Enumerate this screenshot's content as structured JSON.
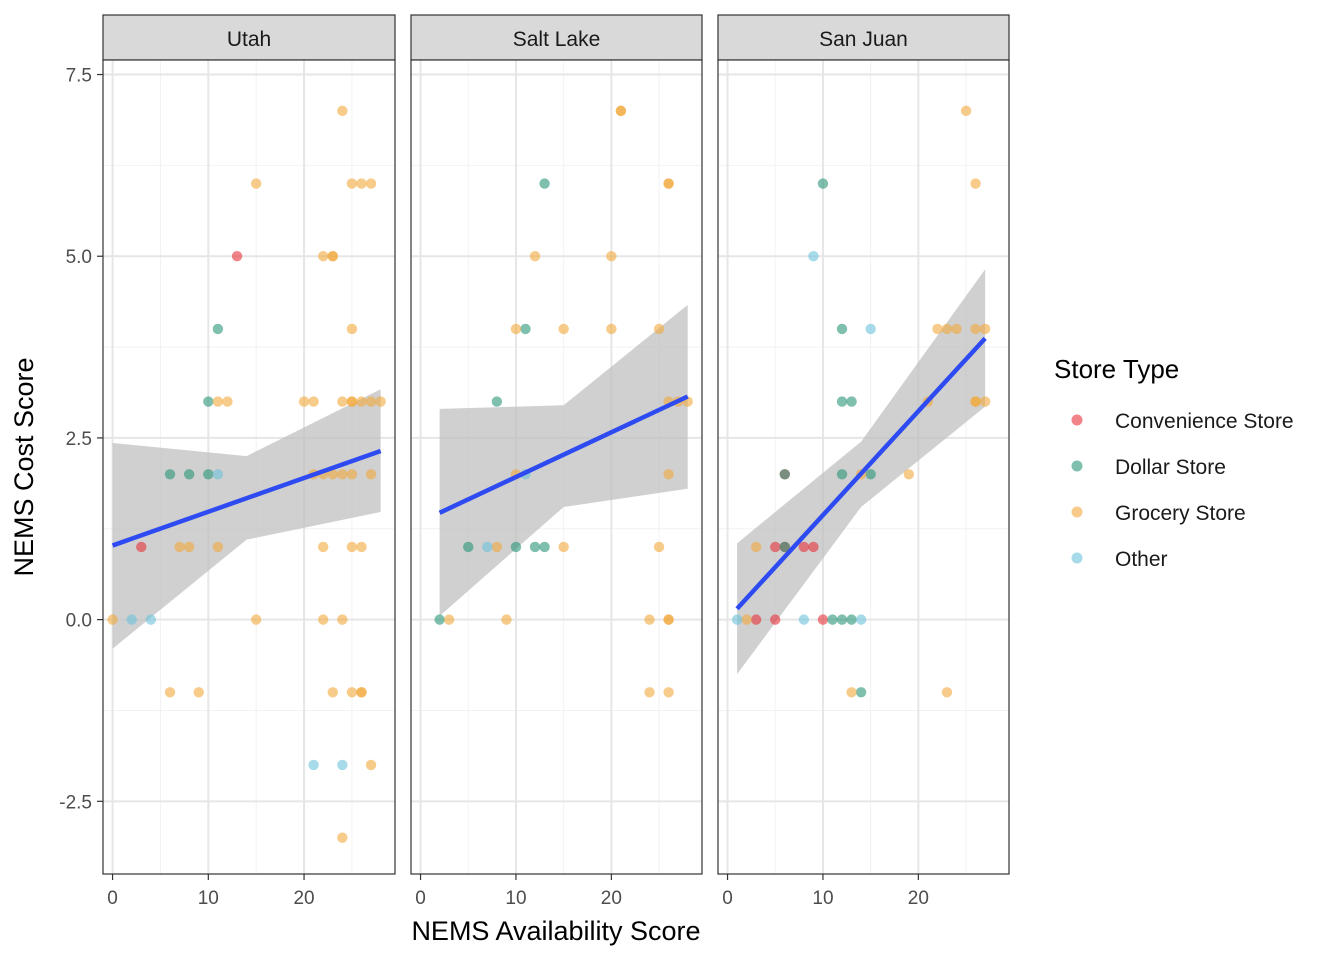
{
  "chart_data": {
    "type": "scatter",
    "facet_by": "county",
    "panels": [
      "Utah",
      "Salt Lake",
      "San Juan"
    ],
    "xlabel": "NEMS Availability Score",
    "ylabel": "NEMS Cost Score",
    "xlim": [
      -1,
      29.5
    ],
    "ylim": [
      -3.5,
      7.7
    ],
    "x_ticks": [
      0,
      10,
      20
    ],
    "y_ticks": [
      -2.5,
      0.0,
      2.5,
      5.0,
      7.5
    ],
    "y_tick_labels": [
      "-2.5",
      "0.0",
      "2.5",
      "5.0",
      "7.5"
    ],
    "grid": true,
    "legend": {
      "title": "Store Type",
      "position": "right",
      "entries": [
        "Convenience Store",
        "Dollar Store",
        "Grocery Store",
        "Other"
      ]
    },
    "colors": {
      "Convenience Store": "#E8323B",
      "Dollar Store": "#2A9478",
      "Grocery Store": "#F2A93B",
      "Other": "#6DC3DC",
      "fit_line": "#2E4BF2",
      "ribbon": "#BEBEBE"
    },
    "series": [
      {
        "name": "Convenience Store",
        "points": [
          {
            "panel": "Utah",
            "x": 3,
            "y": 1
          },
          {
            "panel": "Utah",
            "x": 13,
            "y": 5
          },
          {
            "panel": "San Juan",
            "x": 3,
            "y": 0
          },
          {
            "panel": "San Juan",
            "x": 5,
            "y": 0
          },
          {
            "panel": "San Juan",
            "x": 10,
            "y": 0
          },
          {
            "panel": "San Juan",
            "x": 5,
            "y": 1
          },
          {
            "panel": "San Juan",
            "x": 6,
            "y": 1
          },
          {
            "panel": "San Juan",
            "x": 8,
            "y": 1
          },
          {
            "panel": "San Juan",
            "x": 9,
            "y": 1
          },
          {
            "panel": "San Juan",
            "x": 6,
            "y": 2
          }
        ]
      },
      {
        "name": "Dollar Store",
        "points": [
          {
            "panel": "Utah",
            "x": 6,
            "y": 2
          },
          {
            "panel": "Utah",
            "x": 8,
            "y": 2
          },
          {
            "panel": "Utah",
            "x": 10,
            "y": 2
          },
          {
            "panel": "Utah",
            "x": 10,
            "y": 3
          },
          {
            "panel": "Utah",
            "x": 11,
            "y": 4
          },
          {
            "panel": "Salt Lake",
            "x": 2,
            "y": 0
          },
          {
            "panel": "Salt Lake",
            "x": 5,
            "y": 1
          },
          {
            "panel": "Salt Lake",
            "x": 10,
            "y": 1
          },
          {
            "panel": "Salt Lake",
            "x": 12,
            "y": 1
          },
          {
            "panel": "Salt Lake",
            "x": 13,
            "y": 1
          },
          {
            "panel": "Salt Lake",
            "x": 8,
            "y": 3
          },
          {
            "panel": "Salt Lake",
            "x": 11,
            "y": 4
          },
          {
            "panel": "Salt Lake",
            "x": 13,
            "y": 6
          },
          {
            "panel": "San Juan",
            "x": 11,
            "y": 0
          },
          {
            "panel": "San Juan",
            "x": 12,
            "y": 0
          },
          {
            "panel": "San Juan",
            "x": 13,
            "y": 0
          },
          {
            "panel": "San Juan",
            "x": 14,
            "y": -1
          },
          {
            "panel": "San Juan",
            "x": 6,
            "y": 2
          },
          {
            "panel": "San Juan",
            "x": 12,
            "y": 2
          },
          {
            "panel": "San Juan",
            "x": 15,
            "y": 2
          },
          {
            "panel": "San Juan",
            "x": 12,
            "y": 3
          },
          {
            "panel": "San Juan",
            "x": 13,
            "y": 3
          },
          {
            "panel": "San Juan",
            "x": 12,
            "y": 4
          },
          {
            "panel": "San Juan",
            "x": 10,
            "y": 6
          },
          {
            "panel": "San Juan",
            "x": 6,
            "y": 1
          }
        ]
      },
      {
        "name": "Grocery Store",
        "points": [
          {
            "panel": "Utah",
            "x": 0,
            "y": 0
          },
          {
            "panel": "Utah",
            "x": 6,
            "y": -1
          },
          {
            "panel": "Utah",
            "x": 9,
            "y": -1
          },
          {
            "panel": "Utah",
            "x": 7,
            "y": 1
          },
          {
            "panel": "Utah",
            "x": 8,
            "y": 1
          },
          {
            "panel": "Utah",
            "x": 11,
            "y": 1
          },
          {
            "panel": "Utah",
            "x": 11,
            "y": 3
          },
          {
            "panel": "Utah",
            "x": 12,
            "y": 3
          },
          {
            "panel": "Utah",
            "x": 15,
            "y": 6
          },
          {
            "panel": "Utah",
            "x": 15,
            "y": 0
          },
          {
            "panel": "Utah",
            "x": 20,
            "y": 3
          },
          {
            "panel": "Utah",
            "x": 21,
            "y": 3
          },
          {
            "panel": "Utah",
            "x": 21,
            "y": 2
          },
          {
            "panel": "Utah",
            "x": 22,
            "y": 2
          },
          {
            "panel": "Utah",
            "x": 23,
            "y": 2
          },
          {
            "panel": "Utah",
            "x": 24,
            "y": 2
          },
          {
            "panel": "Utah",
            "x": 25,
            "y": 2
          },
          {
            "panel": "Utah",
            "x": 27,
            "y": 2
          },
          {
            "panel": "Utah",
            "x": 22,
            "y": 1
          },
          {
            "panel": "Utah",
            "x": 25,
            "y": 1
          },
          {
            "panel": "Utah",
            "x": 26,
            "y": 1
          },
          {
            "panel": "Utah",
            "x": 22,
            "y": 0
          },
          {
            "panel": "Utah",
            "x": 24,
            "y": 0
          },
          {
            "panel": "Utah",
            "x": 23,
            "y": -1
          },
          {
            "panel": "Utah",
            "x": 25,
            "y": -1
          },
          {
            "panel": "Utah",
            "x": 26,
            "y": -1
          },
          {
            "panel": "Utah",
            "x": 26,
            "y": -1
          },
          {
            "panel": "Utah",
            "x": 27,
            "y": -2
          },
          {
            "panel": "Utah",
            "x": 24,
            "y": -3
          },
          {
            "panel": "Utah",
            "x": 22,
            "y": 5
          },
          {
            "panel": "Utah",
            "x": 23,
            "y": 5
          },
          {
            "panel": "Utah",
            "x": 23,
            "y": 5
          },
          {
            "panel": "Utah",
            "x": 25,
            "y": 4
          },
          {
            "panel": "Utah",
            "x": 24,
            "y": 3
          },
          {
            "panel": "Utah",
            "x": 25,
            "y": 3
          },
          {
            "panel": "Utah",
            "x": 25,
            "y": 3
          },
          {
            "panel": "Utah",
            "x": 26,
            "y": 3
          },
          {
            "panel": "Utah",
            "x": 27,
            "y": 3
          },
          {
            "panel": "Utah",
            "x": 28,
            "y": 3
          },
          {
            "panel": "Utah",
            "x": 25,
            "y": 6
          },
          {
            "panel": "Utah",
            "x": 26,
            "y": 6
          },
          {
            "panel": "Utah",
            "x": 27,
            "y": 6
          },
          {
            "panel": "Utah",
            "x": 24,
            "y": 7
          },
          {
            "panel": "Salt Lake",
            "x": 3,
            "y": 0
          },
          {
            "panel": "Salt Lake",
            "x": 9,
            "y": 0
          },
          {
            "panel": "Salt Lake",
            "x": 8,
            "y": 1
          },
          {
            "panel": "Salt Lake",
            "x": 15,
            "y": 1
          },
          {
            "panel": "Salt Lake",
            "x": 10,
            "y": 2
          },
          {
            "panel": "Salt Lake",
            "x": 10,
            "y": 4
          },
          {
            "panel": "Salt Lake",
            "x": 15,
            "y": 4
          },
          {
            "panel": "Salt Lake",
            "x": 20,
            "y": 4
          },
          {
            "panel": "Salt Lake",
            "x": 12,
            "y": 5
          },
          {
            "panel": "Salt Lake",
            "x": 20,
            "y": 5
          },
          {
            "panel": "Salt Lake",
            "x": 21,
            "y": 7
          },
          {
            "panel": "Salt Lake",
            "x": 21,
            "y": 7
          },
          {
            "panel": "Salt Lake",
            "x": 25,
            "y": 4
          },
          {
            "panel": "Salt Lake",
            "x": 25,
            "y": 1
          },
          {
            "panel": "Salt Lake",
            "x": 26,
            "y": 2
          },
          {
            "panel": "Salt Lake",
            "x": 26,
            "y": 3
          },
          {
            "panel": "Salt Lake",
            "x": 27,
            "y": 3
          },
          {
            "panel": "Salt Lake",
            "x": 28,
            "y": 3
          },
          {
            "panel": "Salt Lake",
            "x": 26,
            "y": 6
          },
          {
            "panel": "Salt Lake",
            "x": 26,
            "y": 6
          },
          {
            "panel": "Salt Lake",
            "x": 24,
            "y": 0
          },
          {
            "panel": "Salt Lake",
            "x": 26,
            "y": 0
          },
          {
            "panel": "Salt Lake",
            "x": 26,
            "y": 0
          },
          {
            "panel": "Salt Lake",
            "x": 24,
            "y": -1
          },
          {
            "panel": "Salt Lake",
            "x": 26,
            "y": -1
          },
          {
            "panel": "San Juan",
            "x": 2,
            "y": 0
          },
          {
            "panel": "San Juan",
            "x": 3,
            "y": 1
          },
          {
            "panel": "San Juan",
            "x": 13,
            "y": -1
          },
          {
            "panel": "San Juan",
            "x": 14,
            "y": 2
          },
          {
            "panel": "San Juan",
            "x": 19,
            "y": 2
          },
          {
            "panel": "San Juan",
            "x": 21,
            "y": 3
          },
          {
            "panel": "San Juan",
            "x": 22,
            "y": 4
          },
          {
            "panel": "San Juan",
            "x": 23,
            "y": 4
          },
          {
            "panel": "San Juan",
            "x": 24,
            "y": 4
          },
          {
            "panel": "San Juan",
            "x": 26,
            "y": 4
          },
          {
            "panel": "San Juan",
            "x": 27,
            "y": 4
          },
          {
            "panel": "San Juan",
            "x": 26,
            "y": 3
          },
          {
            "panel": "San Juan",
            "x": 26,
            "y": 3
          },
          {
            "panel": "San Juan",
            "x": 27,
            "y": 3
          },
          {
            "panel": "San Juan",
            "x": 23,
            "y": -1
          },
          {
            "panel": "San Juan",
            "x": 26,
            "y": 6
          },
          {
            "panel": "San Juan",
            "x": 25,
            "y": 7
          }
        ]
      },
      {
        "name": "Other",
        "points": [
          {
            "panel": "Utah",
            "x": 2,
            "y": 0
          },
          {
            "panel": "Utah",
            "x": 4,
            "y": 0
          },
          {
            "panel": "Utah",
            "x": 11,
            "y": 2
          },
          {
            "panel": "Utah",
            "x": 21,
            "y": -2
          },
          {
            "panel": "Utah",
            "x": 24,
            "y": -2
          },
          {
            "panel": "Salt Lake",
            "x": 7,
            "y": 1
          },
          {
            "panel": "Salt Lake",
            "x": 11,
            "y": 2
          },
          {
            "panel": "San Juan",
            "x": 1,
            "y": 0
          },
          {
            "panel": "San Juan",
            "x": 8,
            "y": 0
          },
          {
            "panel": "San Juan",
            "x": 14,
            "y": 0
          },
          {
            "panel": "San Juan",
            "x": 9,
            "y": 5
          },
          {
            "panel": "San Juan",
            "x": 15,
            "y": 4
          }
        ]
      }
    ],
    "trend_lines": [
      {
        "panel": "Utah",
        "x": [
          0,
          14,
          28
        ],
        "fit": [
          1.02,
          1.67,
          2.32
        ],
        "lower": [
          -0.4,
          1.1,
          1.48
        ],
        "upper": [
          2.43,
          2.25,
          3.17
        ]
      },
      {
        "panel": "Salt Lake",
        "x": [
          2,
          15,
          28
        ],
        "fit": [
          1.47,
          2.27,
          3.07
        ],
        "lower": [
          0.05,
          1.55,
          1.8
        ],
        "upper": [
          2.9,
          2.95,
          4.33
        ]
      },
      {
        "panel": "San Juan",
        "x": [
          1,
          14,
          27
        ],
        "fit": [
          0.15,
          2.0,
          3.87
        ],
        "lower": [
          -0.75,
          1.55,
          2.93
        ],
        "upper": [
          1.05,
          2.45,
          4.82
        ]
      }
    ]
  }
}
